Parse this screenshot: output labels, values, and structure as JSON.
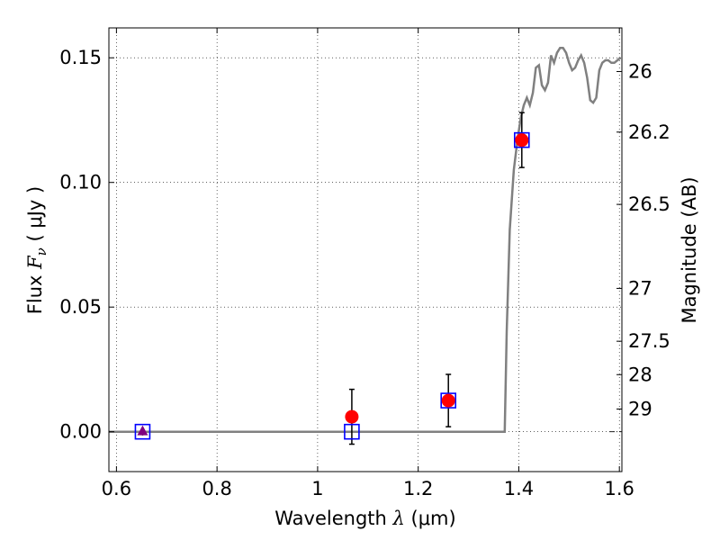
{
  "chart_data": {
    "type": "scatter",
    "xlabel": {
      "prefix": "Wavelength ",
      "symbol": "λ",
      "suffix": " (μm)"
    },
    "ylabel": {
      "prefix": "Flux ",
      "symbol": "F",
      "subscript": "ν",
      "suffix": " ( μJy )"
    },
    "y2label": "Magnitude (AB)",
    "xlim": [
      0.585,
      1.605
    ],
    "ylim": [
      -0.016,
      0.162
    ],
    "xticks": [
      {
        "value": 0.6,
        "label": "0.6"
      },
      {
        "value": 0.8,
        "label": "0.8"
      },
      {
        "value": 1.0,
        "label": "1"
      },
      {
        "value": 1.2,
        "label": "1.2"
      },
      {
        "value": 1.4,
        "label": "1.4"
      },
      {
        "value": 1.6,
        "label": "1.6"
      }
    ],
    "yticks": [
      {
        "value": 0.0,
        "label": "0.00"
      },
      {
        "value": 0.05,
        "label": "0.05"
      },
      {
        "value": 0.1,
        "label": "0.10"
      },
      {
        "value": 0.15,
        "label": "0.15"
      }
    ],
    "y2ticks": [
      {
        "label": "26",
        "flux": 0.1445
      },
      {
        "label": "26.2",
        "flux": 0.1202
      },
      {
        "label": "26.5",
        "flux": 0.0912
      },
      {
        "label": "27",
        "flux": 0.0575
      },
      {
        "label": "27.5",
        "flux": 0.0363
      },
      {
        "label": "28",
        "flux": 0.0229
      },
      {
        "label": "29",
        "flux": 0.0091
      }
    ],
    "grid": true,
    "series": [
      {
        "name": "model-spectrum",
        "kind": "line",
        "color": "#808080",
        "x": [
          0.585,
          1.372,
          1.376,
          1.382,
          1.39,
          1.398,
          1.404,
          1.41,
          1.416,
          1.422,
          1.428,
          1.434,
          1.44,
          1.446,
          1.452,
          1.458,
          1.464,
          1.47,
          1.476,
          1.482,
          1.488,
          1.494,
          1.5,
          1.506,
          1.512,
          1.518,
          1.524,
          1.53,
          1.536,
          1.542,
          1.548,
          1.554,
          1.56,
          1.566,
          1.572,
          1.578,
          1.584,
          1.59,
          1.596,
          1.602
        ],
        "y": [
          0.0,
          0.0,
          0.04,
          0.081,
          0.105,
          0.118,
          0.126,
          0.131,
          0.134,
          0.131,
          0.136,
          0.146,
          0.147,
          0.139,
          0.137,
          0.14,
          0.151,
          0.148,
          0.152,
          0.154,
          0.154,
          0.152,
          0.148,
          0.145,
          0.146,
          0.149,
          0.151,
          0.148,
          0.142,
          0.133,
          0.132,
          0.134,
          0.145,
          0.148,
          0.149,
          0.149,
          0.148,
          0.148,
          0.149,
          0.15
        ]
      },
      {
        "name": "observed",
        "kind": "points-errorbars",
        "color": "#ff0000",
        "points": [
          {
            "x": 1.068,
            "y": 0.006,
            "err": 0.011
          },
          {
            "x": 1.26,
            "y": 0.0125,
            "err": 0.0105
          },
          {
            "x": 1.406,
            "y": 0.117,
            "err": 0.011
          }
        ]
      },
      {
        "name": "model-photometry",
        "kind": "open-squares",
        "color": "#0000ff",
        "points": [
          {
            "x": 0.652,
            "y": 0.0
          },
          {
            "x": 1.068,
            "y": 0.0
          },
          {
            "x": 1.26,
            "y": 0.0125
          },
          {
            "x": 1.406,
            "y": 0.117
          }
        ]
      },
      {
        "name": "upper-limit",
        "kind": "triangle",
        "color": "#800080",
        "points": [
          {
            "x": 0.652,
            "y": 0.0,
            "err": 0.0015
          }
        ]
      }
    ],
    "zero_line_dashdot_range": [
      1.58,
      1.605
    ]
  }
}
